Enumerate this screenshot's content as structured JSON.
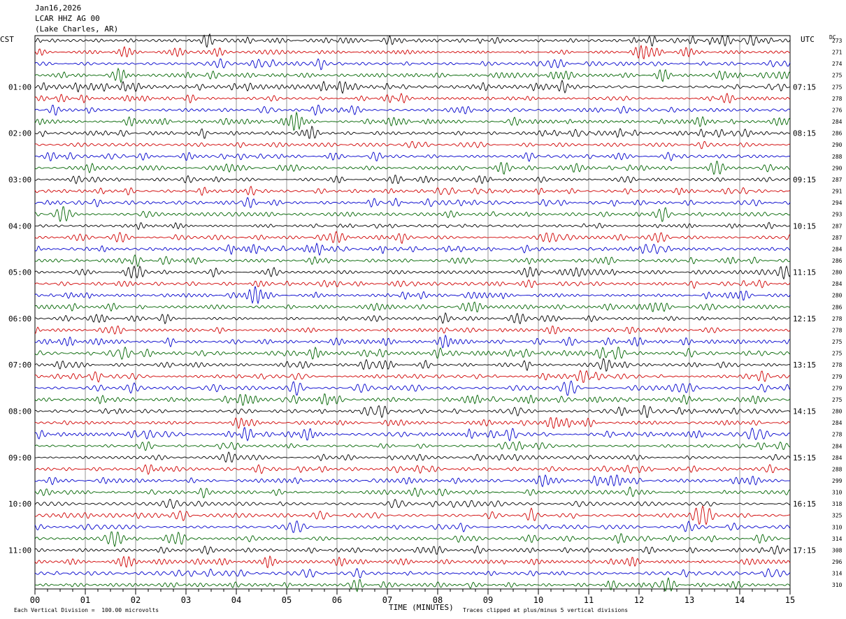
{
  "header": {
    "date": "Jan16,2026",
    "station": "LCAR HHZ AG 00",
    "location": "(Lake Charles, AR)",
    "left_tz": "CST",
    "right_tz": "UTC",
    "dc_label": "DC"
  },
  "footer": {
    "scale_note": "Each Vertical Division =  100.00 microvolts",
    "clip_note": "Traces clipped at plus/minus 5 vertical divisions"
  },
  "colors": {
    "traces": [
      "#000000",
      "#d00000",
      "#0000cc",
      "#006400"
    ],
    "grid": "#000000"
  },
  "chart_data": {
    "type": "line",
    "title": "",
    "xlabel": "TIME (MINUTES)",
    "xlim": [
      0,
      15
    ],
    "x_ticks": [
      "00",
      "01",
      "02",
      "03",
      "04",
      "05",
      "06",
      "07",
      "08",
      "09",
      "10",
      "11",
      "12",
      "13",
      "14",
      "15"
    ],
    "trace_minutes": 15,
    "left_time_labels": [
      "01:00",
      "02:00",
      "03:00",
      "04:00",
      "05:00",
      "06:00",
      "07:00",
      "08:00",
      "09:00",
      "10:00",
      "11:00"
    ],
    "right_time_labels": [
      "07:15",
      "08:15",
      "09:15",
      "10:15",
      "11:15",
      "12:15",
      "13:15",
      "14:15",
      "15:15",
      "16:15",
      "17:15"
    ],
    "label_start_row": 4,
    "label_every_rows": 4,
    "dc_offsets": [
      273,
      271,
      274,
      275,
      275,
      278,
      276,
      284,
      286,
      290,
      288,
      290,
      287,
      291,
      294,
      293,
      287,
      287,
      284,
      286,
      280,
      284,
      280,
      286,
      278,
      278,
      275,
      275,
      278,
      279,
      279,
      275,
      280,
      284,
      278,
      284,
      284,
      288,
      299,
      310,
      318,
      325,
      310,
      314,
      308,
      296,
      314,
      310
    ],
    "event_rows": [
      0
    ],
    "event_minute_range": [
      13.4,
      14.5
    ]
  }
}
